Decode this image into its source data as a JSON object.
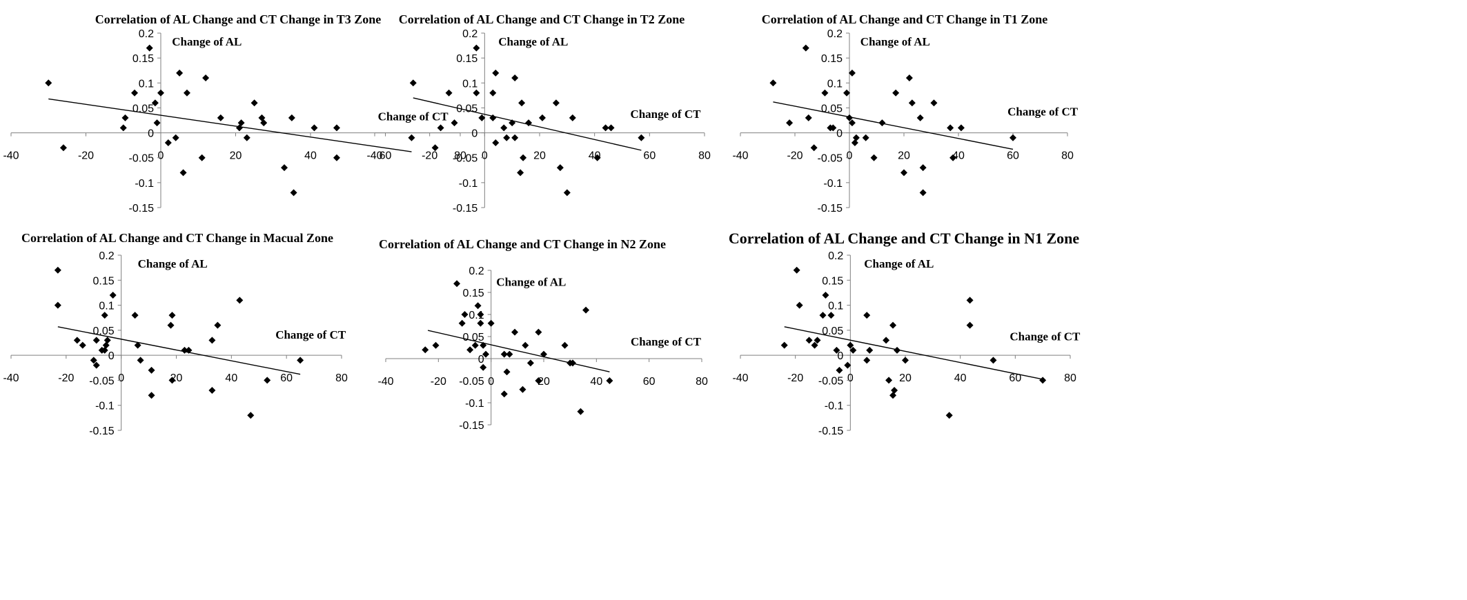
{
  "chart_data": [
    {
      "type": "scatter",
      "title": "Correlation of AL Change and CT Change in T3 Zone",
      "xlabel": "Change of CT",
      "ylabel": "Change of AL",
      "xlim": [
        -40,
        80
      ],
      "ylim": [
        -0.15,
        0.2
      ],
      "xticks": [
        "-40",
        "-20",
        "0",
        "20",
        "40",
        "60",
        "80"
      ],
      "yticks": [
        "0.2",
        "0.15",
        "0.1",
        "0.05",
        "0",
        "-0.05",
        "-0.1",
        "-0.15"
      ],
      "grid": false,
      "series": [
        {
          "points": [
            [
              -30,
              0.1
            ],
            [
              -26,
              -0.03
            ],
            [
              -10,
              0.01
            ],
            [
              -9.5,
              0.03
            ],
            [
              -7,
              0.08
            ],
            [
              -3,
              0.17
            ],
            [
              -1.5,
              0.06
            ],
            [
              -1,
              0.02
            ],
            [
              0,
              0.08
            ],
            [
              2,
              -0.02
            ],
            [
              4,
              -0.01
            ],
            [
              5,
              0.12
            ],
            [
              6,
              -0.08
            ],
            [
              7,
              0.08
            ],
            [
              11,
              -0.05
            ],
            [
              12,
              0.11
            ],
            [
              16,
              0.03
            ],
            [
              21,
              0.01
            ],
            [
              21.5,
              0.02
            ],
            [
              23,
              -0.01
            ],
            [
              25,
              0.06
            ],
            [
              27,
              0.03
            ],
            [
              27.5,
              0.02
            ],
            [
              33,
              -0.07
            ],
            [
              35,
              0.03
            ],
            [
              35.5,
              -0.12
            ],
            [
              41,
              0.01
            ],
            [
              47,
              0.01
            ],
            [
              47,
              -0.05
            ],
            [
              67,
              -0.01
            ]
          ]
        }
      ],
      "trendline": {
        "x": [
          -30,
          67
        ],
        "y": [
          0.068,
          -0.038
        ]
      },
      "annotations": {
        "ylabel_pos": [
          3,
          0.175
        ],
        "xlabel_pos": [
          58,
          0.025
        ]
      }
    },
    {
      "type": "scatter",
      "title": "Correlation of AL Change and CT Change in T2 Zone",
      "xlabel": "Change of CT",
      "ylabel": "Change of AL",
      "xlim": [
        -40,
        80
      ],
      "ylim": [
        -0.15,
        0.2
      ],
      "xticks": [
        "-40",
        "-20",
        "0",
        "20",
        "40",
        "60",
        "80"
      ],
      "yticks": [
        "0.2",
        "0.15",
        "0.1",
        "0.05",
        "0",
        "-0.05",
        "-0.1",
        "-0.15"
      ],
      "grid": false,
      "series": [
        {
          "points": [
            [
              -26,
              0.1
            ],
            [
              -18,
              -0.03
            ],
            [
              -16,
              0.01
            ],
            [
              -13,
              0.08
            ],
            [
              -11,
              0.02
            ],
            [
              -3,
              0.17
            ],
            [
              -3,
              0.08
            ],
            [
              -1,
              0.03
            ],
            [
              3,
              0.08
            ],
            [
              3,
              0.03
            ],
            [
              4,
              -0.02
            ],
            [
              4,
              0.12
            ],
            [
              7,
              0.01
            ],
            [
              8,
              -0.01
            ],
            [
              10,
              0.02
            ],
            [
              11,
              -0.01
            ],
            [
              11,
              0.11
            ],
            [
              13,
              -0.08
            ],
            [
              13.5,
              0.06
            ],
            [
              14,
              -0.05
            ],
            [
              16,
              0.02
            ],
            [
              21,
              0.03
            ],
            [
              26,
              0.06
            ],
            [
              27.5,
              -0.07
            ],
            [
              30,
              -0.12
            ],
            [
              32,
              0.03
            ],
            [
              41,
              -0.05
            ],
            [
              44,
              0.01
            ],
            [
              46,
              0.01
            ],
            [
              57,
              -0.01
            ]
          ]
        }
      ],
      "trendline": {
        "x": [
          -26,
          57
        ],
        "y": [
          0.07,
          -0.035
        ]
      },
      "annotations": {
        "ylabel_pos": [
          5,
          0.175
        ],
        "xlabel_pos": [
          53,
          0.03
        ]
      }
    },
    {
      "type": "scatter",
      "title": "Correlation of AL Change and CT Change in T1 Zone",
      "xlabel": "Change of CT",
      "ylabel": "Change of AL",
      "xlim": [
        -40,
        80
      ],
      "ylim": [
        -0.15,
        0.2
      ],
      "xticks": [
        "-40",
        "-20",
        "0",
        "20",
        "40",
        "60",
        "80"
      ],
      "yticks": [
        "0.2",
        "0.15",
        "0.1",
        "0.05",
        "0",
        "-0.05",
        "-0.1",
        "-0.15"
      ],
      "grid": false,
      "series": [
        {
          "points": [
            [
              -28,
              0.1
            ],
            [
              -22,
              0.02
            ],
            [
              -16,
              0.17
            ],
            [
              -15,
              0.03
            ],
            [
              -13,
              -0.03
            ],
            [
              -9,
              0.08
            ],
            [
              -7,
              0.01
            ],
            [
              -6,
              0.01
            ],
            [
              -1,
              0.08
            ],
            [
              0,
              0.03
            ],
            [
              1,
              0.02
            ],
            [
              1,
              0.12
            ],
            [
              2,
              -0.02
            ],
            [
              2.5,
              -0.01
            ],
            [
              6,
              -0.01
            ],
            [
              9,
              -0.05
            ],
            [
              12,
              0.02
            ],
            [
              17,
              0.08
            ],
            [
              20,
              -0.08
            ],
            [
              22,
              0.11
            ],
            [
              23,
              0.06
            ],
            [
              26,
              0.03
            ],
            [
              27,
              -0.12
            ],
            [
              27,
              -0.07
            ],
            [
              31,
              0.06
            ],
            [
              37,
              0.01
            ],
            [
              38,
              -0.05
            ],
            [
              41,
              0.01
            ],
            [
              60,
              -0.01
            ]
          ]
        }
      ],
      "trendline": {
        "x": [
          -28,
          60
        ],
        "y": [
          0.062,
          -0.033
        ]
      },
      "annotations": {
        "ylabel_pos": [
          4,
          0.175
        ],
        "xlabel_pos": [
          58,
          0.035
        ]
      }
    },
    {
      "type": "scatter",
      "title": "Correlation of AL Change and CT Change in Macual Zone",
      "xlabel": "Change of CT",
      "ylabel": "Change of AL",
      "xlim": [
        -40,
        80
      ],
      "ylim": [
        -0.15,
        0.2
      ],
      "xticks": [
        "-40",
        "-20",
        "0",
        "20",
        "40",
        "60",
        "80"
      ],
      "yticks": [
        "0.2",
        "0.15",
        "0.1",
        "0.05",
        "0",
        "-0.05",
        "-0.1",
        "-0.15"
      ],
      "grid": false,
      "series": [
        {
          "points": [
            [
              -23,
              0.17
            ],
            [
              -23,
              0.1
            ],
            [
              -16,
              0.03
            ],
            [
              -14,
              0.02
            ],
            [
              -10,
              -0.01
            ],
            [
              -9,
              -0.02
            ],
            [
              -9,
              0.03
            ],
            [
              -7,
              0.01
            ],
            [
              -6,
              0.01
            ],
            [
              -6,
              0.08
            ],
            [
              -5.5,
              0.02
            ],
            [
              -5,
              0.03
            ],
            [
              -3,
              0.12
            ],
            [
              5,
              0.08
            ],
            [
              6,
              0.02
            ],
            [
              7,
              -0.01
            ],
            [
              11,
              -0.03
            ],
            [
              11,
              -0.08
            ],
            [
              18,
              0.06
            ],
            [
              18.5,
              0.08
            ],
            [
              18.5,
              -0.05
            ],
            [
              23,
              0.01
            ],
            [
              24.5,
              0.01
            ],
            [
              33,
              0.03
            ],
            [
              33,
              -0.07
            ],
            [
              35,
              0.06
            ],
            [
              43,
              0.11
            ],
            [
              47,
              -0.12
            ],
            [
              53,
              -0.05
            ],
            [
              65,
              -0.01
            ]
          ]
        }
      ],
      "trendline": {
        "x": [
          -23,
          65
        ],
        "y": [
          0.057,
          -0.038
        ]
      },
      "annotations": {
        "ylabel_pos": [
          6,
          0.175
        ],
        "xlabel_pos": [
          56,
          0.033
        ]
      }
    },
    {
      "type": "scatter",
      "title": "Correlation of AL Change and CT Change in N2 Zone",
      "xlabel": "Change of CT",
      "ylabel": "Change of AL",
      "xlim": [
        -40,
        80
      ],
      "ylim": [
        -0.15,
        0.2
      ],
      "xticks": [
        "-40",
        "-20",
        "0",
        "20",
        "40",
        "60",
        "80"
      ],
      "yticks": [
        "0.2",
        "0.15",
        "0.1",
        "0.05",
        "0",
        "-0.05",
        "-0.1",
        "-0.15"
      ],
      "grid": false,
      "series": [
        {
          "points": [
            [
              -25,
              0.02
            ],
            [
              -21,
              0.03
            ],
            [
              -13,
              0.17
            ],
            [
              -11,
              0.08
            ],
            [
              -10,
              0.1
            ],
            [
              -8,
              0.02
            ],
            [
              -6,
              0.03
            ],
            [
              -5,
              0.12
            ],
            [
              -4,
              0.1
            ],
            [
              -4,
              0.08
            ],
            [
              -3,
              -0.02
            ],
            [
              -3,
              0.03
            ],
            [
              -2,
              0.01
            ],
            [
              0,
              0.08
            ],
            [
              5,
              0.01
            ],
            [
              5,
              -0.08
            ],
            [
              6,
              -0.03
            ],
            [
              7,
              0.01
            ],
            [
              9,
              0.06
            ],
            [
              12,
              -0.07
            ],
            [
              13,
              0.03
            ],
            [
              15,
              -0.01
            ],
            [
              18,
              0.06
            ],
            [
              18,
              -0.05
            ],
            [
              20,
              0.01
            ],
            [
              28,
              0.03
            ],
            [
              30,
              -0.01
            ],
            [
              31,
              -0.01
            ],
            [
              34,
              -0.12
            ],
            [
              36,
              0.11
            ],
            [
              45,
              -0.05
            ]
          ]
        }
      ],
      "trendline": {
        "x": [
          -24,
          45
        ],
        "y": [
          0.064,
          -0.03
        ]
      },
      "annotations": {
        "ylabel_pos": [
          2,
          0.165
        ],
        "xlabel_pos": [
          53,
          0.03
        ]
      }
    },
    {
      "type": "scatter",
      "title": "Correlation of AL Change and CT Change in N1 Zone",
      "xlabel": "Change of CT",
      "ylabel": "Change of AL",
      "xlim": [
        -40,
        80
      ],
      "ylim": [
        -0.15,
        0.2
      ],
      "xticks": [
        "-40",
        "-20",
        "0",
        "20",
        "40",
        "60",
        "80"
      ],
      "yticks": [
        "0.2",
        "0.15",
        "0.1",
        "0.05",
        "0",
        "-0.05",
        "-0.1",
        "-0.15"
      ],
      "grid": false,
      "series": [
        {
          "points": [
            [
              -24,
              0.02
            ],
            [
              -19.5,
              0.17
            ],
            [
              -18.5,
              0.1
            ],
            [
              -15,
              0.03
            ],
            [
              -13,
              0.02
            ],
            [
              -12,
              0.03
            ],
            [
              -10,
              0.08
            ],
            [
              -9,
              0.12
            ],
            [
              -7,
              0.08
            ],
            [
              -5,
              0.01
            ],
            [
              -4,
              -0.03
            ],
            [
              -1,
              -0.02
            ],
            [
              0,
              0.02
            ],
            [
              1,
              0.01
            ],
            [
              6,
              0.08
            ],
            [
              6,
              -0.01
            ],
            [
              7,
              0.01
            ],
            [
              13,
              0.03
            ],
            [
              14,
              -0.05
            ],
            [
              15.5,
              -0.08
            ],
            [
              15.5,
              0.06
            ],
            [
              16,
              -0.07
            ],
            [
              17,
              0.01
            ],
            [
              20,
              -0.01
            ],
            [
              36,
              -0.12
            ],
            [
              43.5,
              0.11
            ],
            [
              43.5,
              0.06
            ],
            [
              52,
              -0.01
            ],
            [
              70,
              -0.05
            ]
          ]
        }
      ],
      "trendline": {
        "x": [
          -24,
          70
        ],
        "y": [
          0.057,
          -0.048
        ]
      },
      "annotations": {
        "ylabel_pos": [
          5,
          0.175
        ],
        "xlabel_pos": [
          58,
          0.03
        ]
      }
    }
  ]
}
